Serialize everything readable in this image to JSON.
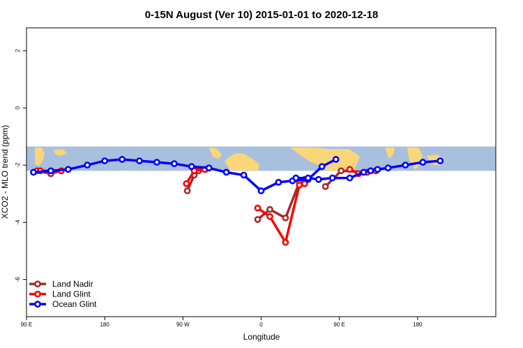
{
  "chart_data": {
    "type": "line",
    "title": "0-15N August (Ver 10)   2015-01-01 to 2020-12-18",
    "xlabel": "Longitude",
    "ylabel": "XCO2 - MLO trend (ppm)",
    "xlim": [
      -90,
      180
    ],
    "ylim": [
      -7.3,
      2.8
    ],
    "x_ticks": [
      {
        "value": -90,
        "label": "90 E"
      },
      {
        "value": -45,
        "label": "180"
      },
      {
        "value": 0,
        "label": "90 W"
      },
      {
        "value": 45,
        "label": "0"
      },
      {
        "value": 90,
        "label": "90 E"
      },
      {
        "value": 135,
        "label": "180"
      }
    ],
    "y_ticks": [
      {
        "value": 2,
        "label": "2"
      },
      {
        "value": 0,
        "label": "0"
      },
      {
        "value": -2,
        "label": "-2"
      },
      {
        "value": -4,
        "label": "-4"
      },
      {
        "value": -6,
        "label": "-6"
      }
    ],
    "grid": false,
    "legend_position": "bottom-left",
    "map_band": {
      "y_top": -1.35,
      "y_bottom": -2.2,
      "ocean_color": "#a9bfde",
      "land_color": "#fad67a"
    },
    "series": [
      {
        "name": "Land Nadir",
        "color": "#a52a2a",
        "segments": [
          [
            [
              -84,
              -2.2
            ],
            [
              -76,
              -2.3
            ],
            [
              -70,
              -2.2
            ]
          ],
          [
            [
              2.5,
              -2.9
            ],
            [
              6.5,
              -2.35
            ],
            [
              9,
              -2.2
            ],
            [
              13,
              -2.15
            ]
          ],
          [
            [
              43,
              -3.9
            ],
            [
              50,
              -3.55
            ],
            [
              59,
              -3.85
            ],
            [
              67,
              -2.6
            ],
            [
              70,
              -2.5
            ]
          ],
          [
            [
              82,
              -2.75
            ],
            [
              91,
              -2.2
            ],
            [
              106,
              -2.25
            ],
            [
              111,
              -2.2
            ]
          ]
        ]
      },
      {
        "name": "Land Glint",
        "color": "#ff0000",
        "segments": [
          [
            [
              -82,
              -2.2
            ],
            [
              -70,
              -2.2
            ]
          ],
          [
            [
              2,
              -2.65
            ],
            [
              6.5,
              -2.2
            ],
            [
              12.5,
              -2.15
            ]
          ],
          [
            [
              43,
              -3.5
            ],
            [
              50,
              -3.8
            ],
            [
              59,
              -4.7
            ],
            [
              67,
              -2.7
            ],
            [
              70,
              -2.65
            ]
          ],
          [
            [
              96,
              -2.15
            ],
            [
              101,
              -2.3
            ],
            [
              106,
              -2.25
            ],
            [
              111,
              -2.2
            ]
          ]
        ]
      },
      {
        "name": "Ocean Glint",
        "color": "#0000ff",
        "segments": [
          [
            [
              -86,
              -2.25
            ],
            [
              -76,
              -2.2
            ],
            [
              -66,
              -2.15
            ],
            [
              -55,
              -2.0
            ],
            [
              -45,
              -1.85
            ],
            [
              -35,
              -1.8
            ],
            [
              -25,
              -1.85
            ],
            [
              -15,
              -1.9
            ],
            [
              -5,
              -1.95
            ],
            [
              5,
              -2.05
            ],
            [
              15,
              -2.1
            ],
            [
              25,
              -2.25
            ],
            [
              35,
              -2.35
            ],
            [
              45,
              -2.9
            ],
            [
              55,
              -2.6
            ],
            [
              63,
              -2.55
            ],
            [
              72,
              -2.5
            ],
            [
              80,
              -2.05
            ],
            [
              88,
              -1.8
            ]
          ],
          [
            [
              65,
              -2.45
            ],
            [
              72,
              -2.45
            ],
            [
              78,
              -2.5
            ],
            [
              86,
              -2.45
            ],
            [
              96,
              -2.45
            ],
            [
              104,
              -2.25
            ],
            [
              108,
              -2.2
            ],
            [
              112,
              -2.15
            ],
            [
              118,
              -2.1
            ],
            [
              128,
              -2.0
            ],
            [
              138,
              -1.9
            ],
            [
              148,
              -1.85
            ]
          ]
        ]
      }
    ]
  }
}
